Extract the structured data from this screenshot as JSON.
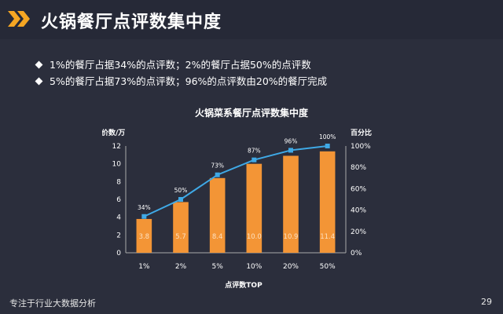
{
  "header": {
    "title": "火锅餐厅点评数集中度"
  },
  "bullets": [
    "1%的餐厅占据34%的点评数；2%的餐厅占据50%的点评数",
    "5%的餐厅占据73%的点评数；96%的点评数由20%的餐厅完成"
  ],
  "footer": {
    "text": "专注于行业大数据分析",
    "page": "29"
  },
  "colors": {
    "bar": "#f39536",
    "line": "#3fa9e6",
    "accent": "#f5a623"
  },
  "chart_data": {
    "type": "bar",
    "title": "火锅菜系餐厅点评数集中度",
    "xlabel": "点评数TOP",
    "ylabel": "评价数/万",
    "y2label": "百分比",
    "categories": [
      "1%",
      "2%",
      "5%",
      "10%",
      "20%",
      "50%"
    ],
    "values": [
      3.8,
      5.7,
      8.4,
      10.0,
      10.9,
      11.4
    ],
    "value_labels": [
      "3.8",
      "5.7",
      "8.4",
      "10.0",
      "10.9",
      "11.4"
    ],
    "line_values": [
      34,
      50,
      73,
      87,
      96,
      100
    ],
    "line_labels": [
      "34%",
      "50%",
      "73%",
      "87%",
      "96%",
      "100%"
    ],
    "ylim": [
      0,
      12
    ],
    "yticks": [
      "0",
      "2",
      "4",
      "6",
      "8",
      "10",
      "12"
    ],
    "y2lim": [
      0,
      100
    ],
    "y2ticks": [
      "0%",
      "20%",
      "40%",
      "60%",
      "80%",
      "100%"
    ],
    "grid": false
  }
}
